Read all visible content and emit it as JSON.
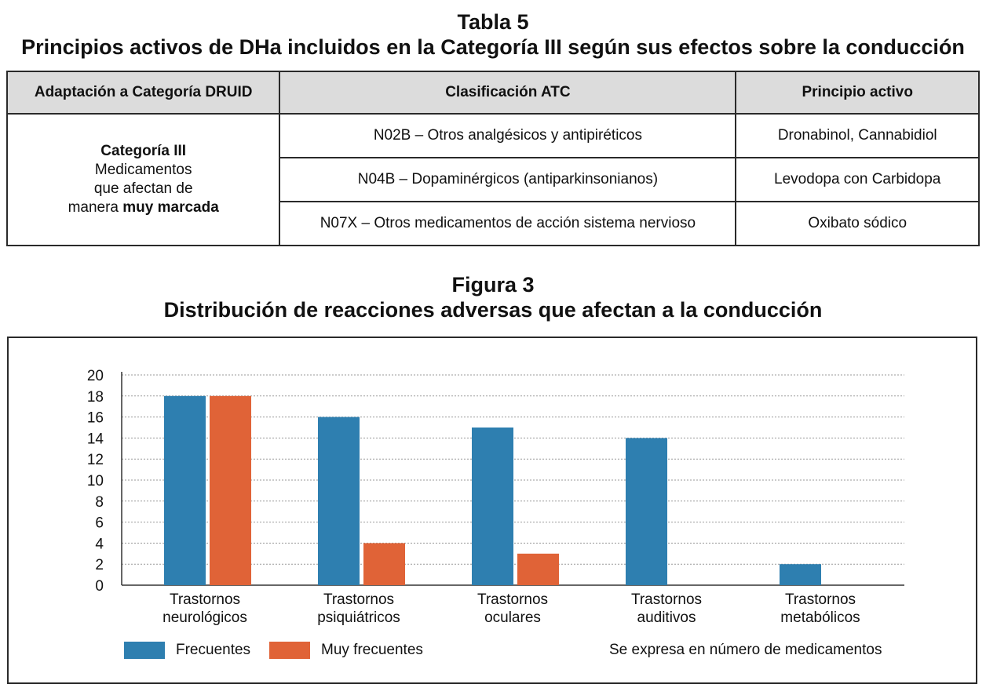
{
  "table": {
    "title": "Tabla 5",
    "subtitle": "Principios activos de DHa incluidos en la Categoría III según sus efectos sobre la conducción",
    "headers": [
      "Adaptación a Categoría DRUID",
      "Clasificación ATC",
      "Principio activo"
    ],
    "category": {
      "name": "Categoría III",
      "line1": "Medicamentos",
      "line2": "que afectan de",
      "line3_prefix": "manera ",
      "line3_bold": "muy marcada"
    },
    "rows": [
      {
        "atc": "N02B – Otros analgésicos y antipiréticos",
        "active": "Dronabinol, Cannabidiol"
      },
      {
        "atc": "N04B – Dopaminérgicos (antiparkinsonianos)",
        "active": "Levodopa con Carbidopa"
      },
      {
        "atc": "N07X – Otros medicamentos de acción sistema nervioso",
        "active": "Oxibato sódico"
      }
    ]
  },
  "figure": {
    "title": "Figura 3",
    "subtitle": "Distribución de reacciones adversas que afectan a la conducción",
    "note": "Se expresa en número de medicamentos"
  },
  "chart_data": {
    "type": "bar",
    "categories": [
      [
        "Trastornos",
        "neurológicos"
      ],
      [
        "Trastornos",
        "psiquiátricos"
      ],
      [
        "Trastornos",
        "oculares"
      ],
      [
        "Trastornos",
        "auditivos"
      ],
      [
        "Trastornos",
        "metabólicos"
      ]
    ],
    "series": [
      {
        "name": "Frecuentes",
        "color": "#2e7fb0",
        "values": [
          18,
          16,
          15,
          14,
          2
        ]
      },
      {
        "name": "Muy frecuentes",
        "color": "#e06337",
        "values": [
          18,
          4,
          3,
          0,
          0
        ]
      }
    ],
    "yticks": [
      0,
      2,
      4,
      6,
      8,
      10,
      12,
      14,
      16,
      18,
      20
    ],
    "ylim": [
      0,
      20
    ],
    "grid": true,
    "legend": "bottom-left"
  }
}
